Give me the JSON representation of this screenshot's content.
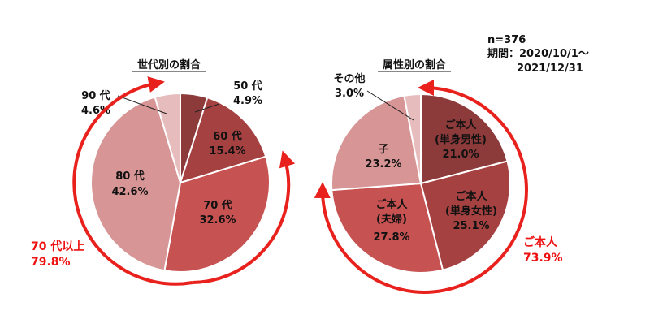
{
  "meta": {
    "n": "n=376",
    "period_line1": "期間：2020/10/1～",
    "period_line2": "2021/12/31"
  },
  "colors": {
    "accent": "#e8211d",
    "slice_dark": "#8c3a3a",
    "slice_mid": "#b24545",
    "slice_red": "#c75252",
    "slice_pink": "#d79595",
    "slice_light": "#e7bcbc"
  },
  "chart_data": [
    {
      "type": "pie",
      "title": "世代別の割合",
      "slices": [
        {
          "label": "50 代",
          "value": 4.9,
          "value_label": "4.9%",
          "color": "#8c3a3a"
        },
        {
          "label": "60 代",
          "value": 15.4,
          "value_label": "15.4%",
          "color": "#a54141"
        },
        {
          "label": "70 代",
          "value": 32.6,
          "value_label": "32.6%",
          "color": "#c75252"
        },
        {
          "label": "80 代",
          "value": 42.6,
          "value_label": "42.6%",
          "color": "#d79595"
        },
        {
          "label": "90 代",
          "value": 4.6,
          "value_label": "4.6%",
          "color": "#e7bcbc"
        }
      ],
      "annotation": {
        "line1": "70 代以上",
        "line2": "79.8%"
      }
    },
    {
      "type": "pie",
      "title": "属性別の割合",
      "slices": [
        {
          "label": "ご本人\n(単身男性)",
          "value": 21.0,
          "value_label": "21.0%",
          "color": "#8c3a3a"
        },
        {
          "label": "ご本人\n(単身女性)",
          "value": 25.1,
          "value_label": "25.1%",
          "color": "#a54141"
        },
        {
          "label": "ご本人\n(夫婦)",
          "value": 27.8,
          "value_label": "27.8%",
          "color": "#c75252"
        },
        {
          "label": "子",
          "value": 23.2,
          "value_label": "23.2%",
          "color": "#d79595"
        },
        {
          "label": "その他",
          "value": 3.0,
          "value_label": "3.0%",
          "color": "#e7bcbc"
        }
      ],
      "annotation": {
        "line1": "ご本人",
        "line2": "73.9%"
      }
    }
  ]
}
